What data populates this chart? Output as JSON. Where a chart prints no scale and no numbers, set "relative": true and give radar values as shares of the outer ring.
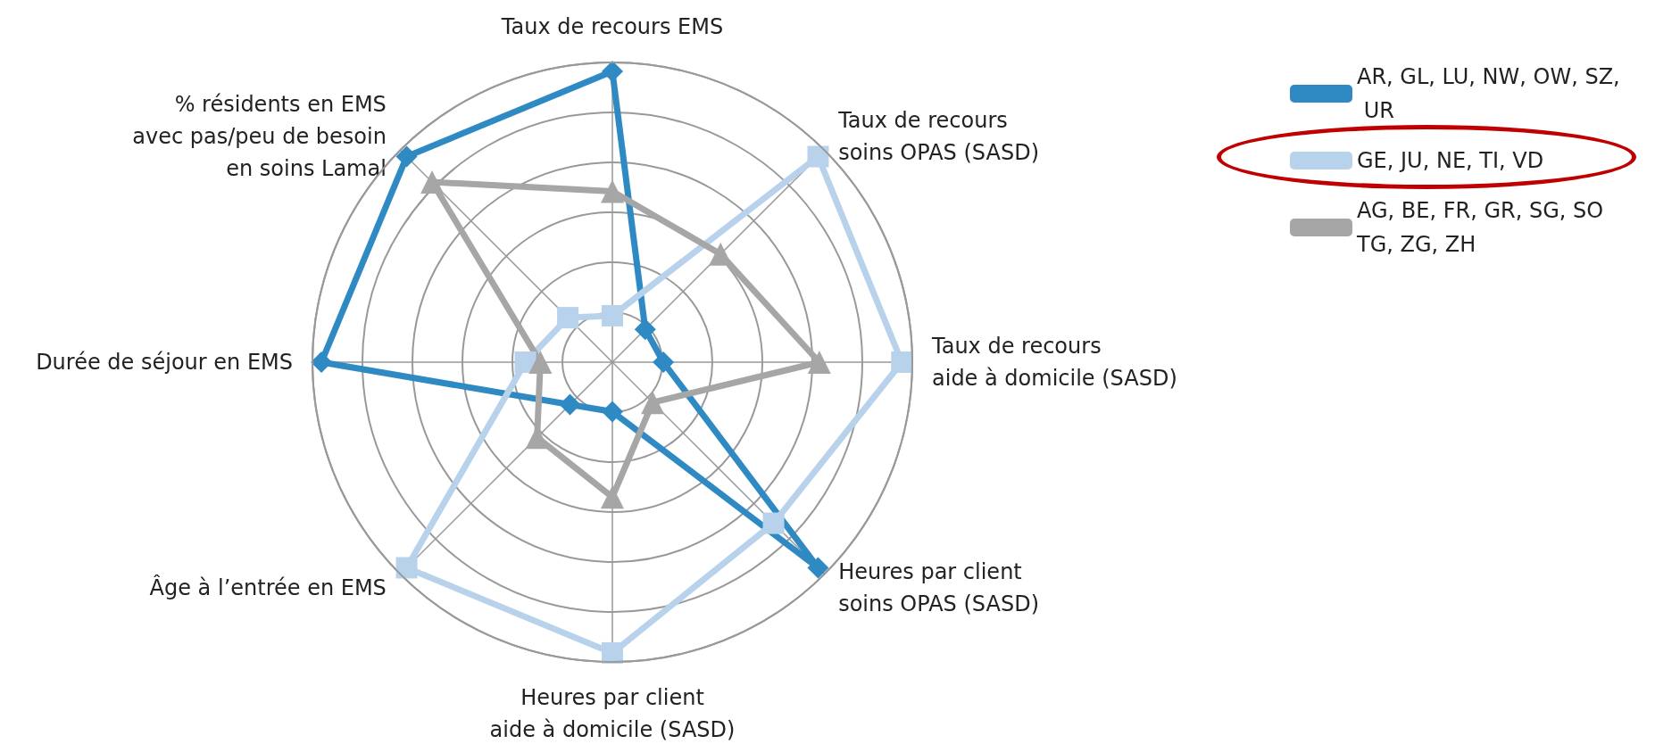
{
  "chart_data": {
    "type": "radar",
    "relative": true,
    "grid": true,
    "legend": "top right",
    "categories": [
      "Taux de recours EMS",
      "Taux de recours\nsoins OPAS (SASD)",
      "Taux de recours\naide à domicile (SASD)",
      "Heures par client\nsoins OPAS (SASD)",
      "Heures par client\naide à domicile (SASD)",
      "Âge à l’entrée en EMS",
      "Durée de séjour en EMS",
      "% résidents en EMS\navec pas/peu de besoin\nen soins Lamal"
    ],
    "series": [
      {
        "name": "AR, GL, LU, NW, OW, SZ, UR",
        "color": "#2f8ac4",
        "marker": "diamond",
        "values": [
          0.97,
          0.155,
          0.17,
          0.97,
          0.165,
          0.2,
          0.97,
          0.97
        ]
      },
      {
        "name": "GE, JU, NE, TI, VD",
        "color": "#b8d2ec",
        "marker": "square",
        "values": [
          0.155,
          0.97,
          0.965,
          0.76,
          0.97,
          0.97,
          0.29,
          0.21
        ]
      },
      {
        "name": "AG, BE, FR, GR, SG, SO TG, ZG, ZH",
        "color": "#a6a6a6",
        "marker": "triangle",
        "values": [
          0.57,
          0.51,
          0.69,
          0.19,
          0.45,
          0.355,
          0.24,
          0.85
        ]
      }
    ]
  }
}
